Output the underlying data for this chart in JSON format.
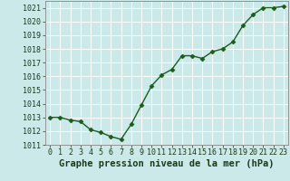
{
  "x": [
    0,
    1,
    2,
    3,
    4,
    5,
    6,
    7,
    8,
    9,
    10,
    11,
    12,
    13,
    14,
    15,
    16,
    17,
    18,
    19,
    20,
    21,
    22,
    23
  ],
  "y": [
    1013.0,
    1013.0,
    1012.8,
    1012.7,
    1012.1,
    1011.9,
    1011.6,
    1011.4,
    1012.5,
    1013.9,
    1015.3,
    1016.1,
    1016.5,
    1017.5,
    1017.5,
    1017.3,
    1017.8,
    1018.0,
    1018.5,
    1019.7,
    1020.5,
    1021.0,
    1021.0,
    1021.1
  ],
  "line_color": "#1a5c1a",
  "marker": "D",
  "marker_size": 2.5,
  "linewidth": 1.0,
  "xlabel": "Graphe pression niveau de la mer (hPa)",
  "xlabel_fontsize": 7.5,
  "xlabel_fontweight": "bold",
  "background_color": "#cce9e9",
  "grid_color": "#ffffff",
  "ylim": [
    1011,
    1021.5
  ],
  "yticks": [
    1011,
    1012,
    1013,
    1014,
    1015,
    1016,
    1017,
    1018,
    1019,
    1020,
    1021
  ],
  "xticks": [
    0,
    1,
    2,
    3,
    4,
    5,
    6,
    7,
    8,
    9,
    10,
    11,
    12,
    13,
    14,
    15,
    16,
    17,
    18,
    19,
    20,
    21,
    22,
    23
  ],
  "tick_fontsize": 6.0,
  "tick_color": "#1a3a1a",
  "spine_color": "#888888"
}
